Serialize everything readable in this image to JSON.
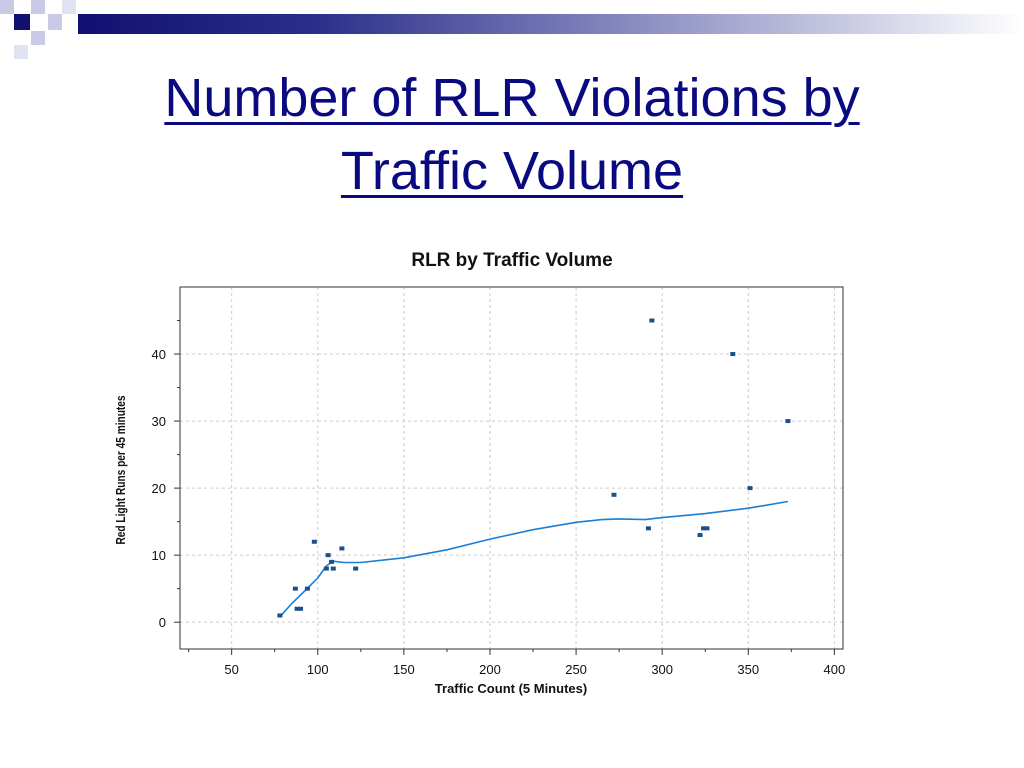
{
  "slide": {
    "title_line1": "Number of RLR Violations by",
    "title_line2": "Traffic Volume"
  },
  "colors": {
    "title": "#0a0a80",
    "banner_dark": "#101070",
    "point": "#1a4f8a",
    "trend": "#1a7fd4",
    "grid": "#cccccc"
  },
  "chart_data": {
    "type": "scatter",
    "title": "RLR by Traffic Volume",
    "xlabel": "Traffic Count (5 Minutes)",
    "ylabel": "Red Light Runs per 45 minutes",
    "xlim": [
      20,
      405
    ],
    "ylim": [
      -4,
      50
    ],
    "xticks": [
      50,
      100,
      150,
      200,
      250,
      300,
      350,
      400
    ],
    "yticks": [
      0,
      10,
      20,
      30,
      40
    ],
    "grid": true,
    "legend": "none",
    "points": [
      {
        "x": 78,
        "y": 1
      },
      {
        "x": 87,
        "y": 5
      },
      {
        "x": 88,
        "y": 2
      },
      {
        "x": 90,
        "y": 2
      },
      {
        "x": 94,
        "y": 5
      },
      {
        "x": 98,
        "y": 12
      },
      {
        "x": 105,
        "y": 8
      },
      {
        "x": 106,
        "y": 10
      },
      {
        "x": 108,
        "y": 9
      },
      {
        "x": 109,
        "y": 8
      },
      {
        "x": 114,
        "y": 11
      },
      {
        "x": 122,
        "y": 8
      },
      {
        "x": 272,
        "y": 19
      },
      {
        "x": 292,
        "y": 14
      },
      {
        "x": 294,
        "y": 45
      },
      {
        "x": 322,
        "y": 13
      },
      {
        "x": 324,
        "y": 14
      },
      {
        "x": 326,
        "y": 14
      },
      {
        "x": 341,
        "y": 40
      },
      {
        "x": 351,
        "y": 20
      },
      {
        "x": 373,
        "y": 30
      }
    ],
    "trend": [
      [
        78,
        0.8
      ],
      [
        85,
        2.8
      ],
      [
        93,
        4.8
      ],
      [
        100,
        6.6
      ],
      [
        105,
        8.4
      ],
      [
        109,
        9.1
      ],
      [
        115,
        8.9
      ],
      [
        125,
        8.9
      ],
      [
        150,
        9.6
      ],
      [
        175,
        10.8
      ],
      [
        200,
        12.4
      ],
      [
        225,
        13.8
      ],
      [
        250,
        14.9
      ],
      [
        265,
        15.3
      ],
      [
        275,
        15.4
      ],
      [
        290,
        15.3
      ],
      [
        300,
        15.6
      ],
      [
        325,
        16.2
      ],
      [
        350,
        17.0
      ],
      [
        373,
        18.0
      ]
    ]
  }
}
